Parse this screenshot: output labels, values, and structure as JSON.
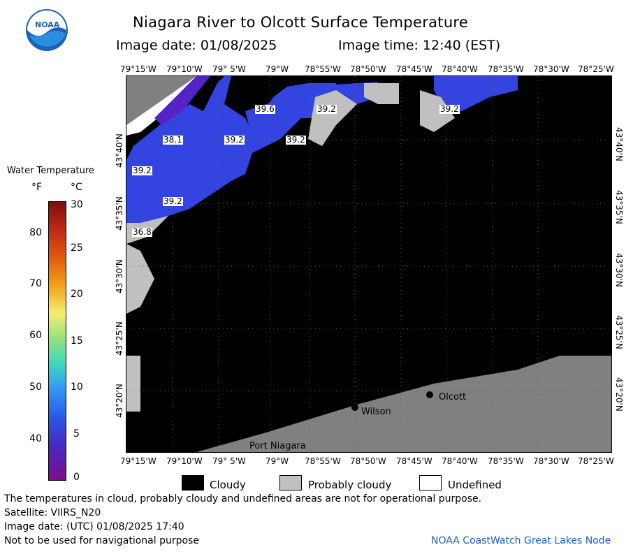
{
  "header": {
    "title": "Niagara River to Olcott Surface Temperature",
    "image_date_label": "Image date: 01/08/2025",
    "image_time_label": "Image time: 12:40 (EST)"
  },
  "logo": {
    "text": "NOAA"
  },
  "legend": {
    "title": "Water Temperature",
    "unit_f": "°F",
    "unit_c": "°C",
    "f_ticks": [
      "80",
      "70",
      "60",
      "50",
      "40"
    ],
    "c_ticks": [
      "30",
      "25",
      "20",
      "15",
      "10",
      "5",
      "0"
    ]
  },
  "axes": {
    "top_lon": [
      "79°15'W",
      "79°10'W",
      "79° 5'W",
      "79°W",
      "78°55'W",
      "78°50'W",
      "78°45'W",
      "78°40'W",
      "78°35'W",
      "78°30'W",
      "78°25'W"
    ],
    "bottom_lon": [
      "79°15'W",
      "79°10'W",
      "79° 5'W",
      "79°W",
      "78°55'W",
      "78°50'W",
      "78°45'W",
      "78°40'W",
      "78°35'W",
      "78°30'W",
      "78°25'W"
    ],
    "lat": [
      "43°40'N",
      "43°35'N",
      "43°30'N",
      "43°25'N",
      "43°20'N"
    ]
  },
  "map": {
    "places": [
      "Olcott",
      "Wilson",
      "Port Niagara"
    ],
    "isotherms": [
      "39.6",
      "39.2",
      "39.2",
      "38.1",
      "39.2",
      "39.2",
      "39.2",
      "39.2",
      "36.8"
    ],
    "colors": {
      "cloud": "#000000",
      "land": "#808080",
      "prob_cloud": "#c0c0c0",
      "water_blue": "#3344e0",
      "water_violet": "#5522c8"
    }
  },
  "key": {
    "cloudy": "Cloudy",
    "probably_cloudy": "Probably cloudy",
    "undefined": "Undefined"
  },
  "footer": {
    "disclaimer": "The temperatures in cloud, probably cloudy and undefined areas are not for operational purpose.",
    "satellite": "Satellite: VIIRS_N20",
    "utc_date": "Image date: (UTC) 01/08/2025  17:40",
    "nav_warning": "Not to be used for navigational purpose",
    "credit": "NOAA CoastWatch Great Lakes Node"
  }
}
